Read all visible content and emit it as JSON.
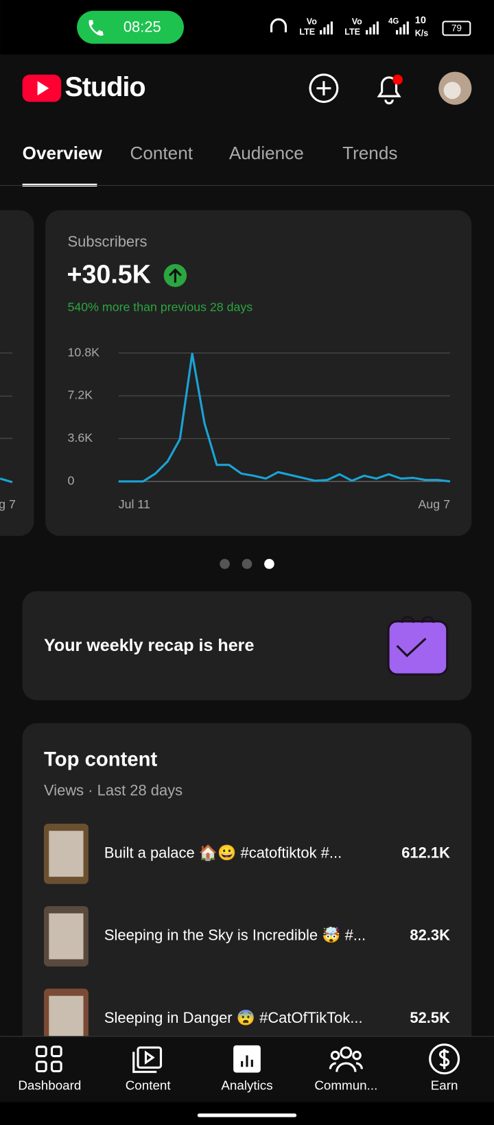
{
  "status_bar": {
    "time": "08:25",
    "network": [
      "Vo",
      "LTE",
      "Vo",
      "LTE",
      "4G"
    ],
    "speed": [
      "10",
      "K/s"
    ],
    "battery": "79"
  },
  "header": {
    "logo": "Studio"
  },
  "tabs": [
    "Overview",
    "Content",
    "Audience",
    "Trends"
  ],
  "side_card": {
    "date": "g 7"
  },
  "card": {
    "label": "Subscribers",
    "value": "+30.5K",
    "change": "540% more than previous 28 days"
  },
  "chart_data": {
    "type": "line",
    "categories": [
      "Jul 11",
      null,
      null,
      null,
      null,
      null,
      null,
      null,
      null,
      null,
      null,
      null,
      null,
      null,
      null,
      null,
      null,
      null,
      null,
      null,
      null,
      null,
      null,
      null,
      null,
      null,
      null,
      "Aug 7"
    ],
    "values": [
      0,
      0,
      0,
      660,
      1690,
      3560,
      10740,
      4890,
      1390,
      1390,
      660,
      480,
      240,
      780,
      540,
      300,
      60,
      120,
      600,
      60,
      480,
      240,
      600,
      240,
      300,
      120,
      120,
      0
    ],
    "color": "#1aa3d4",
    "ylim": [
      0,
      10800
    ],
    "yticks": [
      0,
      {
        "value": 3600,
        "label": "3.6K"
      },
      {
        "value": 7200,
        "label": "7.2K"
      },
      {
        "value": 10800,
        "label": "10.8K"
      }
    ],
    "grid": true
  },
  "recap": {
    "text": "Your weekly recap is here"
  },
  "top_content": {
    "title": "Top content",
    "subtitle": "Views · Last 28 days",
    "items": [
      {
        "title": "Built a palace 🏠😀 #catoftiktok #...",
        "views": "612.1K"
      },
      {
        "title": "Sleeping in the Sky is Incredible 🤯 #...",
        "views": "82.3K"
      },
      {
        "title": "Sleeping in Danger 😨 #CatOfTikTok...",
        "views": "52.5K"
      }
    ]
  },
  "nav": [
    "Dashboard",
    "Content",
    "Analytics",
    "Commun...",
    "Earn"
  ]
}
